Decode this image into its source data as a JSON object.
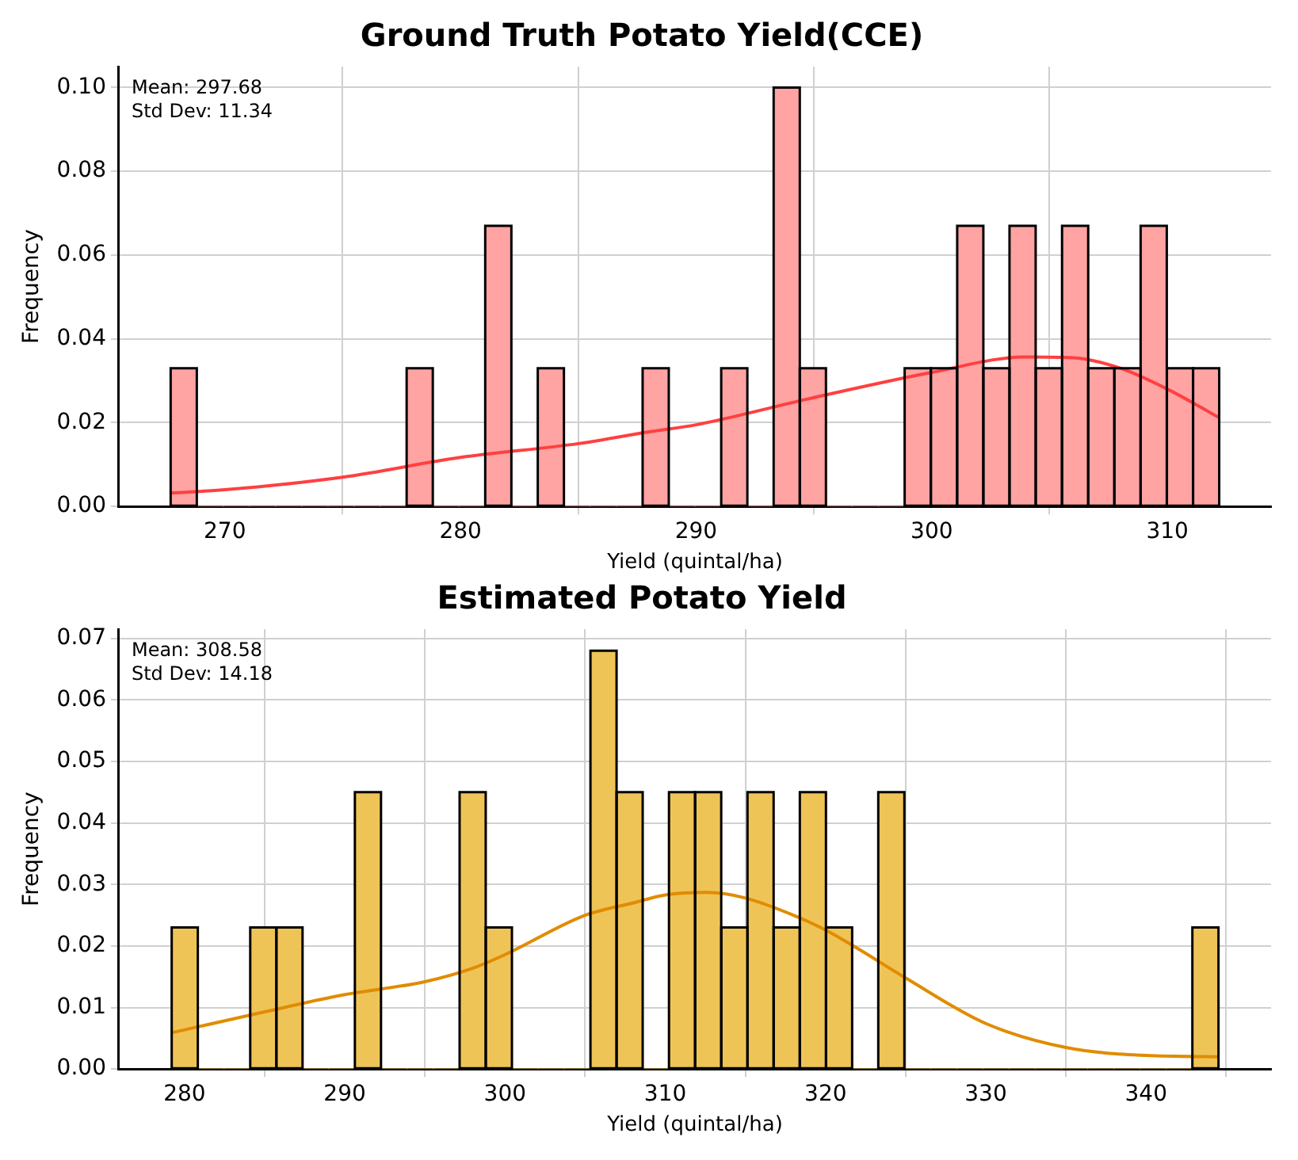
{
  "chart_data": [
    {
      "type": "histogram",
      "title": "Ground Truth Potato Yield(CCE)",
      "xlabel": "Yield (quintal/ha)",
      "ylabel": "Frequency",
      "bins": [
        267.7,
        268.81,
        269.93,
        271.04,
        272.15,
        273.26,
        274.38,
        275.49,
        276.6,
        277.71,
        278.83,
        279.94,
        281.05,
        282.16,
        283.28,
        284.39,
        285.5,
        286.61,
        287.73,
        288.84,
        289.95,
        291.06,
        292.18,
        293.29,
        294.4,
        295.51,
        296.63,
        297.74,
        298.85,
        299.96,
        301.08,
        302.19,
        303.3,
        304.41,
        305.53,
        306.64,
        307.75,
        308.86,
        309.98,
        311.09,
        312.2
      ],
      "series": [
        {
          "type": "histogram",
          "color": "#ffa3a3",
          "values": [
            0.033,
            0,
            0,
            0,
            0,
            0,
            0,
            0,
            0,
            0.033,
            0,
            0,
            0.067,
            0,
            0.033,
            0,
            0,
            0,
            0.033,
            0,
            0,
            0.033,
            0,
            0.1,
            0.033,
            0,
            0,
            0,
            0.033,
            0.033,
            0.067,
            0.033,
            0.067,
            0.033,
            0.067,
            0.033,
            0.033,
            0.067,
            0.033,
            0.033
          ]
        },
        {
          "type": "line",
          "color": "#ff4040",
          "x": [
            267.7,
            270,
            275,
            280,
            285,
            288,
            290,
            295,
            300,
            304,
            306,
            308,
            310,
            312.2
          ],
          "values": [
            0.0032,
            0.004,
            0.007,
            0.0117,
            0.015,
            0.0178,
            0.0195,
            0.026,
            0.032,
            0.0357,
            0.0355,
            0.033,
            0.028,
            0.0212
          ]
        }
      ],
      "xlim": [
        265.5,
        314.4
      ],
      "xticks": [
        270,
        280,
        290,
        300,
        310
      ],
      "ylim": [
        0,
        0.105
      ],
      "yticks": [
        {
          "value": 0,
          "label": "0.00"
        },
        {
          "value": 0.02,
          "label": "0.02"
        },
        {
          "value": 0.04,
          "label": "0.04"
        },
        {
          "value": 0.06,
          "label": "0.06"
        },
        {
          "value": 0.08,
          "label": "0.08"
        },
        {
          "value": 0.1,
          "label": "0.10"
        }
      ],
      "grid": true,
      "annotations": [
        "Mean: 297.68",
        "Std Dev: 11.34"
      ]
    },
    {
      "type": "histogram",
      "title": "Estimated Potato Yield",
      "xlabel": "Yield (quintal/ha)",
      "ylabel": "Frequency",
      "bins": [
        279.2,
        280.83,
        282.47,
        284.1,
        285.73,
        287.37,
        289.0,
        290.63,
        292.26,
        293.9,
        295.53,
        297.16,
        298.8,
        300.43,
        302.06,
        303.7,
        305.33,
        306.96,
        308.59,
        310.23,
        311.86,
        313.49,
        315.13,
        316.76,
        318.39,
        320.03,
        321.66,
        323.29,
        324.92,
        326.56,
        328.19,
        329.82,
        331.46,
        333.09,
        334.72,
        336.36,
        337.99,
        339.62,
        341.26,
        342.89,
        344.52
      ],
      "series": [
        {
          "type": "histogram",
          "color": "#efc457",
          "values": [
            0.023,
            0,
            0,
            0.023,
            0.023,
            0,
            0,
            0.045,
            0,
            0,
            0,
            0.045,
            0.023,
            0,
            0,
            0,
            0.068,
            0.045,
            0,
            0.045,
            0.045,
            0.023,
            0.045,
            0.023,
            0.045,
            0.023,
            0,
            0.045,
            0,
            0,
            0,
            0,
            0,
            0,
            0,
            0,
            0,
            0,
            0,
            0.023
          ]
        },
        {
          "type": "line",
          "color": "#e08c00",
          "x": [
            279.2,
            285,
            290,
            295,
            298,
            300,
            305,
            308,
            310,
            312.6,
            315,
            318,
            320,
            322,
            325,
            330,
            335,
            340,
            344.5
          ],
          "values": [
            0.0059,
            0.0093,
            0.0121,
            0.0142,
            0.0164,
            0.0186,
            0.025,
            0.027,
            0.0283,
            0.0287,
            0.0278,
            0.025,
            0.0226,
            0.0196,
            0.0148,
            0.0074,
            0.0035,
            0.0022,
            0.002
          ]
        }
      ],
      "xlim": [
        275.9,
        347.8
      ],
      "xticks": [
        280,
        290,
        300,
        310,
        320,
        330,
        340
      ],
      "ylim": [
        0,
        0.0715
      ],
      "yticks": [
        {
          "value": 0,
          "label": "0.00"
        },
        {
          "value": 0.01,
          "label": "0.01"
        },
        {
          "value": 0.02,
          "label": "0.02"
        },
        {
          "value": 0.03,
          "label": "0.03"
        },
        {
          "value": 0.04,
          "label": "0.04"
        },
        {
          "value": 0.05,
          "label": "0.05"
        },
        {
          "value": 0.06,
          "label": "0.06"
        },
        {
          "value": 0.07,
          "label": "0.07"
        }
      ],
      "grid": true,
      "annotations": [
        "Mean: 308.58",
        "Std Dev: 14.18"
      ]
    }
  ]
}
